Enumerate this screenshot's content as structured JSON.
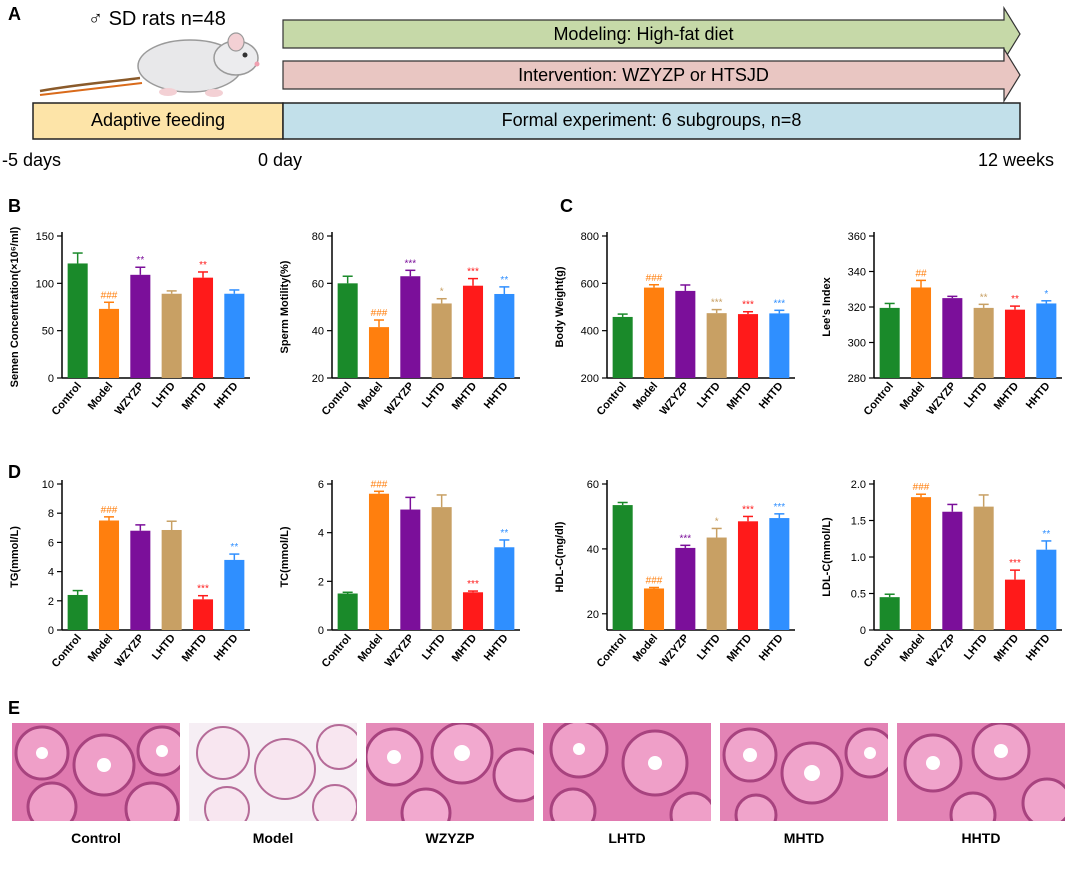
{
  "panel_labels": {
    "a": "A",
    "b": "B",
    "c": "C",
    "d": "D",
    "e": "E"
  },
  "timeline": {
    "rats_symbol": "♂",
    "rats_label": "SD rats n=48",
    "modeling": "Modeling: High-fat diet",
    "intervention": "Intervention: WZYZP or HTSJD",
    "adaptive": "Adaptive feeding",
    "formal": "Formal experiment: 6 subgroups, n=8",
    "t_start": "-5 days",
    "t_zero": "0 day",
    "t_end": "12 weeks",
    "colors": {
      "modeling": "#c6d9a8",
      "intervention": "#e9c6c2",
      "adaptive": "#fde4a8",
      "formal": "#c2e0ea"
    }
  },
  "group_colors": [
    "#1a8a2a",
    "#ff7f0e",
    "#7b0f9a",
    "#c8a064",
    "#ff1a1a",
    "#2f8fff"
  ],
  "chart_data": [
    {
      "id": "semen",
      "type": "bar",
      "ylabel": "Semen Concentration(×10⁶/ml)",
      "categories": [
        "Control",
        "Model",
        "WZYZP",
        "LHTD",
        "MHTD",
        "HHTD"
      ],
      "values": [
        121,
        73,
        109,
        89,
        106,
        89
      ],
      "errors": [
        11,
        7,
        8,
        3,
        6,
        4
      ],
      "sig": [
        "",
        "###",
        "**",
        "",
        "**",
        ""
      ],
      "ylim": [
        0,
        150
      ],
      "yticks": [
        0,
        50,
        100,
        150
      ]
    },
    {
      "id": "motility",
      "type": "bar",
      "ylabel": "Sperm Motility(%)",
      "categories": [
        "Control",
        "Model",
        "WZYZP",
        "LHTD",
        "MHTD",
        "HHTD"
      ],
      "values": [
        60,
        41.5,
        63,
        51.5,
        59,
        55.5
      ],
      "errors": [
        3,
        3,
        2.5,
        2,
        3,
        3
      ],
      "sig": [
        "",
        "###",
        "***",
        "*",
        "***",
        "**"
      ],
      "ylim": [
        20,
        80
      ],
      "yticks": [
        20,
        40,
        60,
        80
      ]
    },
    {
      "id": "bodyweight",
      "type": "bar",
      "ylabel": "Body Weight(g)",
      "categories": [
        "Control",
        "Model",
        "WZYZP",
        "LHTD",
        "MHTD",
        "HHTD"
      ],
      "values": [
        458,
        582,
        568,
        474,
        470,
        473
      ],
      "errors": [
        12,
        12,
        25,
        15,
        10,
        13
      ],
      "sig": [
        "",
        "###",
        "",
        "***",
        "***",
        "***"
      ],
      "ylim": [
        200,
        800
      ],
      "yticks": [
        200,
        400,
        600,
        800
      ]
    },
    {
      "id": "lees",
      "type": "bar",
      "ylabel": "Lee's Index",
      "categories": [
        "Control",
        "Model",
        "WZYZP",
        "LHTD",
        "MHTD",
        "HHTD"
      ],
      "values": [
        319.5,
        331,
        325,
        319.5,
        318.5,
        322
      ],
      "errors": [
        2.5,
        4,
        1,
        2,
        2,
        1.5
      ],
      "sig": [
        "",
        "##",
        "",
        "**",
        "**",
        "*"
      ],
      "ylim": [
        280,
        360
      ],
      "yticks": [
        280,
        300,
        320,
        340,
        360
      ]
    },
    {
      "id": "tg",
      "type": "bar",
      "ylabel": "TG(mmol/L)",
      "categories": [
        "Control",
        "Model",
        "WZYZP",
        "LHTD",
        "MHTD",
        "HHTD"
      ],
      "values": [
        2.4,
        7.5,
        6.8,
        6.85,
        2.1,
        4.8
      ],
      "errors": [
        0.3,
        0.25,
        0.4,
        0.6,
        0.25,
        0.4
      ],
      "sig": [
        "",
        "###",
        "",
        "",
        "***",
        "**"
      ],
      "ylim": [
        0,
        10
      ],
      "yticks": [
        0,
        2,
        4,
        6,
        8,
        10
      ]
    },
    {
      "id": "tc",
      "type": "bar",
      "ylabel": "TC(mmol/L)",
      "categories": [
        "Control",
        "Model",
        "WZYZP",
        "LHTD",
        "MHTD",
        "HHTD"
      ],
      "values": [
        1.5,
        5.6,
        4.95,
        5.05,
        1.55,
        3.4
      ],
      "errors": [
        0.05,
        0.1,
        0.5,
        0.5,
        0.05,
        0.3
      ],
      "sig": [
        "",
        "###",
        "",
        "",
        "***",
        "**"
      ],
      "ylim": [
        0,
        6
      ],
      "yticks": [
        0,
        2,
        4,
        6
      ]
    },
    {
      "id": "hdlc",
      "type": "bar",
      "ylabel": "HDL-C(mg/dl)",
      "categories": [
        "Control",
        "Model",
        "WZYZP",
        "LHTD",
        "MHTD",
        "HHTD"
      ],
      "values": [
        53.5,
        27.8,
        40.3,
        43.5,
        48.5,
        49.5
      ],
      "errors": [
        0.8,
        0.3,
        0.8,
        2.8,
        1.5,
        1.3
      ],
      "sig": [
        "",
        "###",
        "***",
        "*",
        "***",
        "***"
      ],
      "ylim": [
        15,
        60
      ],
      "yticks": [
        20,
        40,
        60
      ]
    },
    {
      "id": "ldlc",
      "type": "bar",
      "ylabel": "LDL-C(mmol/L)",
      "categories": [
        "Control",
        "Model",
        "WZYZP",
        "LHTD",
        "MHTD",
        "HHTD"
      ],
      "values": [
        0.45,
        1.82,
        1.62,
        1.69,
        0.69,
        1.1
      ],
      "errors": [
        0.04,
        0.04,
        0.1,
        0.16,
        0.13,
        0.12
      ],
      "sig": [
        "",
        "###",
        "",
        "",
        "***",
        "**"
      ],
      "ylim": [
        0,
        2
      ],
      "yticks": [
        0,
        0.5,
        1.0,
        1.5,
        2.0
      ]
    }
  ],
  "histology": {
    "labels": [
      "Control",
      "Model",
      "WZYZP",
      "LHTD",
      "MHTD",
      "HHTD"
    ]
  }
}
